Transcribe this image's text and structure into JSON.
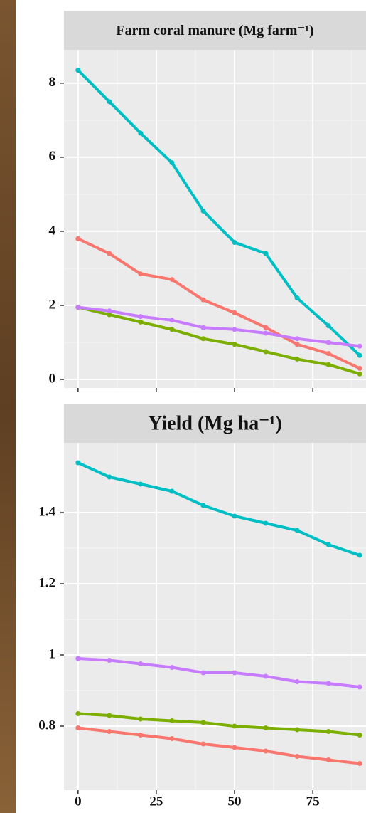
{
  "chart_data": [
    {
      "type": "line",
      "title": "Farm coral manure (Mg farm⁻¹)",
      "x": [
        0,
        10,
        20,
        30,
        40,
        50,
        60,
        70,
        80,
        90
      ],
      "series": [
        {
          "color": "#00BFC4",
          "values": [
            8.35,
            7.5,
            6.65,
            5.85,
            4.55,
            3.7,
            3.4,
            2.2,
            1.45,
            0.65
          ]
        },
        {
          "color": "#F8766D",
          "values": [
            3.8,
            3.4,
            2.85,
            2.7,
            2.15,
            1.8,
            1.4,
            0.95,
            0.7,
            0.3
          ]
        },
        {
          "color": "#7CAE00",
          "values": [
            1.95,
            1.75,
            1.55,
            1.35,
            1.1,
            0.95,
            0.75,
            0.55,
            0.4,
            0.15
          ]
        },
        {
          "color": "#C77CFF",
          "values": [
            1.95,
            1.85,
            1.7,
            1.6,
            1.4,
            1.35,
            1.25,
            1.1,
            1.0,
            0.9
          ]
        }
      ],
      "xlim": [
        -4.5,
        92
      ],
      "xticks": [
        0,
        25,
        50,
        75
      ],
      "ylim": [
        -0.23,
        8.9
      ],
      "yticks": [
        0,
        2,
        4,
        6,
        8
      ],
      "grid": true
    },
    {
      "type": "line",
      "title": "Yield (Mg ha⁻¹)",
      "x": [
        0,
        10,
        20,
        30,
        40,
        50,
        60,
        70,
        80,
        90
      ],
      "series": [
        {
          "color": "#00BFC4",
          "values": [
            1.54,
            1.5,
            1.48,
            1.46,
            1.42,
            1.39,
            1.37,
            1.35,
            1.31,
            1.28
          ]
        },
        {
          "color": "#C77CFF",
          "values": [
            0.99,
            0.985,
            0.975,
            0.965,
            0.95,
            0.95,
            0.94,
            0.925,
            0.92,
            0.91
          ]
        },
        {
          "color": "#7CAE00",
          "values": [
            0.835,
            0.83,
            0.82,
            0.815,
            0.81,
            0.8,
            0.795,
            0.79,
            0.785,
            0.775
          ]
        },
        {
          "color": "#F8766D",
          "values": [
            0.795,
            0.785,
            0.775,
            0.765,
            0.75,
            0.74,
            0.73,
            0.715,
            0.705,
            0.695
          ]
        }
      ],
      "xlim": [
        -4.5,
        92
      ],
      "xticks": [
        0,
        25,
        50,
        75
      ],
      "ylim": [
        0.62,
        1.596
      ],
      "yticks": [
        0.8,
        1,
        1.2,
        1.4
      ],
      "grid": true
    }
  ]
}
